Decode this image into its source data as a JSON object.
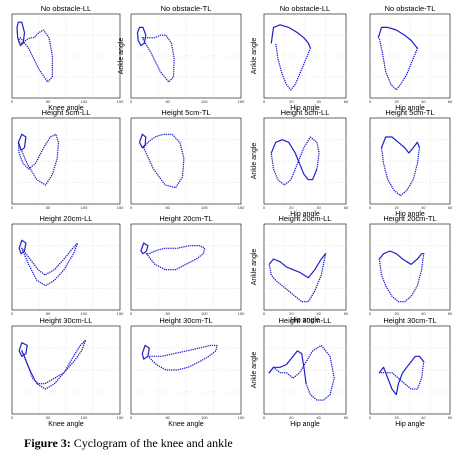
{
  "caption": {
    "label": "Figure 3:",
    "text": " Cyclogram of the knee and ankle"
  },
  "chart_data": [
    {
      "type": "line",
      "title": "No obstacle-LL",
      "xlabel": "Knee angle",
      "ylabel": "",
      "ticks": {
        "x": [
          "0",
          "50",
          "100",
          "150"
        ],
        "y": []
      },
      "series": [
        {
          "style": "dotted",
          "x": [
            8,
            20,
            35,
            48,
            55,
            55,
            50,
            42,
            35,
            28,
            22,
            16,
            10,
            6,
            5,
            8
          ],
          "y": [
            22,
            18,
            10,
            5,
            7,
            15,
            22,
            25,
            24,
            22,
            22,
            21,
            20,
            20,
            21,
            22
          ]
        },
        {
          "style": "solid",
          "x": [
            3,
            5,
            10,
            14,
            12,
            8,
            4,
            3
          ],
          "y": [
            26,
            28,
            28,
            24,
            20,
            19,
            22,
            26
          ]
        }
      ]
    },
    {
      "type": "line",
      "title": "No obstacle-TL",
      "xlabel": "",
      "ylabel": "Ankle angle",
      "ticks": {
        "x": [
          "0",
          "50",
          "100",
          "150"
        ],
        "y": []
      },
      "series": [
        {
          "style": "dotted",
          "x": [
            12,
            25,
            38,
            50,
            57,
            58,
            54,
            46,
            38,
            30,
            22,
            15,
            12
          ],
          "y": [
            22,
            16,
            9,
            5,
            7,
            14,
            20,
            23,
            23,
            22,
            22,
            22,
            22
          ]
        },
        {
          "style": "solid",
          "x": [
            5,
            8,
            13,
            17,
            15,
            10,
            6,
            5
          ],
          "y": [
            24,
            26,
            26,
            23,
            20,
            19,
            21,
            24
          ]
        }
      ]
    },
    {
      "type": "line",
      "title": "No obstacle-LL",
      "xlabel": "Hip angle",
      "ylabel": "Ankle angle",
      "ticks": {
        "x": [
          "0",
          "20",
          "40",
          "60"
        ],
        "y": []
      },
      "series": [
        {
          "style": "solid",
          "x": [
            4,
            6,
            12,
            20,
            28,
            34,
            38,
            40
          ],
          "y": [
            20,
            26,
            27,
            26,
            24,
            22,
            20,
            18
          ]
        },
        {
          "style": "dotted",
          "x": [
            40,
            36,
            30,
            26,
            22,
            18,
            14,
            10,
            8
          ],
          "y": [
            18,
            14,
            8,
            4,
            2,
            4,
            8,
            14,
            20
          ]
        }
      ]
    },
    {
      "type": "line",
      "title": "No obstacle-TL",
      "xlabel": "Hip angle",
      "ylabel": "",
      "ticks": {
        "x": [
          "0",
          "20",
          "40",
          "60"
        ],
        "y": []
      },
      "series": [
        {
          "style": "solid",
          "x": [
            5,
            8,
            14,
            22,
            30,
            36,
            40,
            42
          ],
          "y": [
            22,
            26,
            26,
            25,
            23,
            21,
            19,
            18
          ]
        },
        {
          "style": "dotted",
          "x": [
            42,
            38,
            32,
            26,
            22,
            17,
            12,
            9,
            6
          ],
          "y": [
            18,
            14,
            8,
            4,
            2,
            4,
            9,
            16,
            22
          ]
        }
      ]
    },
    {
      "type": "line",
      "title": "Height 5cm-LL",
      "xlabel": "",
      "ylabel": "",
      "ticks": {
        "x": [
          "0",
          "50",
          "100",
          "150"
        ],
        "y": []
      },
      "series": [
        {
          "style": "dotted",
          "x": [
            8,
            18,
            32,
            45,
            55,
            62,
            64,
            60,
            52,
            42,
            30,
            20,
            12,
            6,
            5,
            8
          ],
          "y": [
            20,
            14,
            8,
            6,
            10,
            16,
            22,
            25,
            24,
            20,
            14,
            12,
            14,
            18,
            22,
            20
          ]
        },
        {
          "style": "solid",
          "x": [
            5,
            10,
            16,
            14,
            9,
            5
          ],
          "y": [
            22,
            25,
            24,
            20,
            19,
            22
          ]
        }
      ]
    },
    {
      "type": "line",
      "title": "Height 5cm-TL",
      "xlabel": "",
      "ylabel": "",
      "ticks": {
        "x": [
          "0",
          "50",
          "100",
          "150"
        ],
        "y": []
      },
      "series": [
        {
          "style": "dotted",
          "x": [
            14,
            28,
            45,
            60,
            70,
            72,
            66,
            55,
            42,
            30,
            20,
            14
          ],
          "y": [
            20,
            12,
            6,
            5,
            9,
            16,
            22,
            25,
            25,
            24,
            22,
            20
          ]
        },
        {
          "style": "solid",
          "x": [
            8,
            12,
            17,
            16,
            12,
            8
          ],
          "y": [
            22,
            25,
            24,
            21,
            20,
            22
          ]
        }
      ]
    },
    {
      "type": "line",
      "title": "Height 5cm-LL",
      "xlabel": "Hip angle",
      "ylabel": "Ankle angle",
      "ticks": {
        "x": [
          "0",
          "20",
          "40",
          "60"
        ],
        "y": []
      },
      "series": [
        {
          "style": "solid",
          "x": [
            4,
            8,
            14,
            20,
            26,
            30,
            34,
            38,
            42,
            46
          ],
          "y": [
            18,
            22,
            23,
            22,
            18,
            14,
            10,
            8,
            8,
            12
          ]
        },
        {
          "style": "dotted",
          "x": [
            46,
            48,
            46,
            40,
            34,
            28,
            22,
            16,
            10,
            6,
            4
          ],
          "y": [
            12,
            18,
            22,
            24,
            20,
            14,
            8,
            6,
            8,
            12,
            18
          ]
        }
      ]
    },
    {
      "type": "line",
      "title": "Height 5cm-TL",
      "xlabel": "Hip angle",
      "ylabel": "",
      "ticks": {
        "x": [
          "0",
          "20",
          "40",
          "60"
        ],
        "y": []
      },
      "series": [
        {
          "style": "solid",
          "x": [
            8,
            12,
            18,
            24,
            30,
            34,
            38,
            42,
            44
          ],
          "y": [
            20,
            24,
            24,
            22,
            20,
            18,
            20,
            22,
            20
          ]
        },
        {
          "style": "dotted",
          "x": [
            44,
            42,
            38,
            32,
            26,
            20,
            14,
            10,
            8
          ],
          "y": [
            20,
            14,
            8,
            4,
            2,
            4,
            8,
            14,
            20
          ]
        }
      ]
    },
    {
      "type": "line",
      "title": "Height 20cm-LL",
      "xlabel": "",
      "ylabel": "",
      "ticks": {
        "x": [
          "0",
          "50",
          "100",
          "150"
        ],
        "y": []
      },
      "series": [
        {
          "style": "dotted",
          "x": [
            10,
            20,
            32,
            45,
            58,
            72,
            86,
            92,
            85,
            72,
            58,
            44,
            34,
            28,
            22,
            16,
            10
          ],
          "y": [
            22,
            16,
            10,
            8,
            10,
            14,
            20,
            24,
            22,
            18,
            14,
            12,
            14,
            16,
            18,
            20,
            22
          ]
        },
        {
          "style": "solid",
          "x": [
            6,
            10,
            16,
            14,
            9,
            6
          ],
          "y": [
            22,
            25,
            24,
            21,
            20,
            22
          ]
        }
      ]
    },
    {
      "type": "line",
      "title": "Height 20cm-TL",
      "xlabel": "",
      "ylabel": "",
      "ticks": {
        "x": [
          "0",
          "50",
          "100",
          "150"
        ],
        "y": []
      },
      "series": [
        {
          "style": "dotted",
          "x": [
            18,
            30,
            45,
            60,
            75,
            90,
            100,
            102,
            95,
            80,
            62,
            44,
            30,
            22,
            18
          ],
          "y": [
            20,
            16,
            14,
            14,
            16,
            18,
            20,
            22,
            23,
            23,
            22,
            22,
            21,
            20,
            20
          ]
        },
        {
          "style": "solid",
          "x": [
            10,
            14,
            20,
            18,
            13,
            10
          ],
          "y": [
            21,
            24,
            23,
            21,
            20,
            21
          ]
        }
      ]
    },
    {
      "type": "line",
      "title": "Height 20cm-LL",
      "xlabel": "Hip angle",
      "ylabel": "Ankle angle",
      "ticks": {
        "x": [
          "0",
          "20",
          "40",
          "60"
        ],
        "y": []
      },
      "series": [
        {
          "style": "solid",
          "x": [
            2,
            6,
            12,
            18,
            24,
            30,
            34,
            38,
            44,
            50,
            54
          ],
          "y": [
            16,
            18,
            17,
            15,
            14,
            13,
            12,
            11,
            14,
            18,
            20
          ]
        },
        {
          "style": "dotted",
          "x": [
            54,
            50,
            44,
            38,
            32,
            26,
            20,
            14,
            8,
            4,
            2
          ],
          "y": [
            20,
            12,
            6,
            2,
            2,
            4,
            6,
            8,
            10,
            12,
            16
          ]
        }
      ]
    },
    {
      "type": "line",
      "title": "Height 20cm-TL",
      "xlabel": "",
      "ylabel": "",
      "ticks": {
        "x": [
          "0",
          "20",
          "40",
          "60"
        ],
        "y": []
      },
      "series": [
        {
          "style": "solid",
          "x": [
            6,
            10,
            16,
            22,
            28,
            32,
            36,
            42,
            46,
            48
          ],
          "y": [
            18,
            20,
            21,
            20,
            18,
            17,
            16,
            18,
            20,
            20
          ]
        },
        {
          "style": "dotted",
          "x": [
            48,
            46,
            42,
            36,
            30,
            24,
            18,
            12,
            8,
            6
          ],
          "y": [
            20,
            14,
            8,
            4,
            2,
            2,
            4,
            8,
            12,
            18
          ]
        }
      ]
    },
    {
      "type": "line",
      "title": "Height 30cm-LL",
      "xlabel": "Knee angle",
      "ylabel": "",
      "ticks": {
        "x": [
          "0",
          "50",
          "100",
          "150"
        ],
        "y": []
      },
      "series": [
        {
          "style": "dotted",
          "x": [
            10,
            20,
            32,
            45,
            58,
            72,
            86,
            96,
            104,
            98,
            86,
            72,
            58,
            44,
            34,
            26,
            20,
            14,
            10
          ],
          "y": [
            22,
            16,
            10,
            8,
            10,
            14,
            20,
            24,
            26,
            22,
            18,
            14,
            12,
            10,
            10,
            12,
            16,
            20,
            22
          ]
        },
        {
          "style": "solid",
          "x": [
            6,
            10,
            18,
            16,
            10,
            6
          ],
          "y": [
            22,
            25,
            24,
            21,
            20,
            22
          ]
        }
      ]
    },
    {
      "type": "line",
      "title": "Height 30cm-TL",
      "xlabel": "Knee angle",
      "ylabel": "",
      "ticks": {
        "x": [
          "0",
          "50",
          "100",
          "150"
        ],
        "y": []
      },
      "series": [
        {
          "style": "dotted",
          "x": [
            20,
            32,
            46,
            62,
            78,
            94,
            108,
            118,
            120,
            110,
            94,
            76,
            58,
            40,
            28,
            22,
            20
          ],
          "y": [
            20,
            17,
            15,
            15,
            16,
            18,
            20,
            22,
            24,
            24,
            23,
            22,
            21,
            20,
            20,
            20,
            20
          ]
        },
        {
          "style": "solid",
          "x": [
            12,
            16,
            22,
            20,
            14,
            12
          ],
          "y": [
            21,
            24,
            23,
            20,
            19,
            21
          ]
        }
      ]
    },
    {
      "type": "line",
      "title": "Height 30cm-LL",
      "xlabel": "Hip angle",
      "ylabel": "Ankle angle",
      "ticks": {
        "x": [
          "0",
          "20",
          "40",
          "60"
        ],
        "y": []
      },
      "series": [
        {
          "style": "solid",
          "x": [
            2,
            6,
            12,
            18,
            24,
            28,
            32,
            34,
            36
          ],
          "y": [
            14,
            16,
            16,
            17,
            20,
            22,
            21,
            16,
            10
          ]
        },
        {
          "style": "dotted",
          "x": [
            36,
            40,
            46,
            52,
            58,
            62,
            58,
            50,
            42,
            36,
            30,
            24,
            18,
            12,
            6,
            2
          ],
          "y": [
            10,
            6,
            4,
            4,
            6,
            12,
            20,
            24,
            22,
            18,
            14,
            12,
            14,
            14,
            16,
            14
          ]
        }
      ]
    },
    {
      "type": "line",
      "title": "Height 30cm-TL",
      "xlabel": "Hip angle",
      "ylabel": "",
      "ticks": {
        "x": [
          "0",
          "20",
          "40",
          "60"
        ],
        "y": []
      },
      "series": [
        {
          "style": "solid",
          "x": [
            6,
            10,
            14,
            18,
            22,
            24,
            28,
            32,
            36,
            40,
            44,
            48
          ],
          "y": [
            14,
            16,
            12,
            8,
            6,
            10,
            14,
            16,
            18,
            20,
            20,
            18
          ]
        },
        {
          "style": "dotted",
          "x": [
            48,
            46,
            42,
            36,
            30,
            24,
            18,
            12,
            8,
            6
          ],
          "y": [
            18,
            12,
            8,
            8,
            10,
            12,
            14,
            14,
            14,
            14
          ]
        }
      ]
    }
  ]
}
